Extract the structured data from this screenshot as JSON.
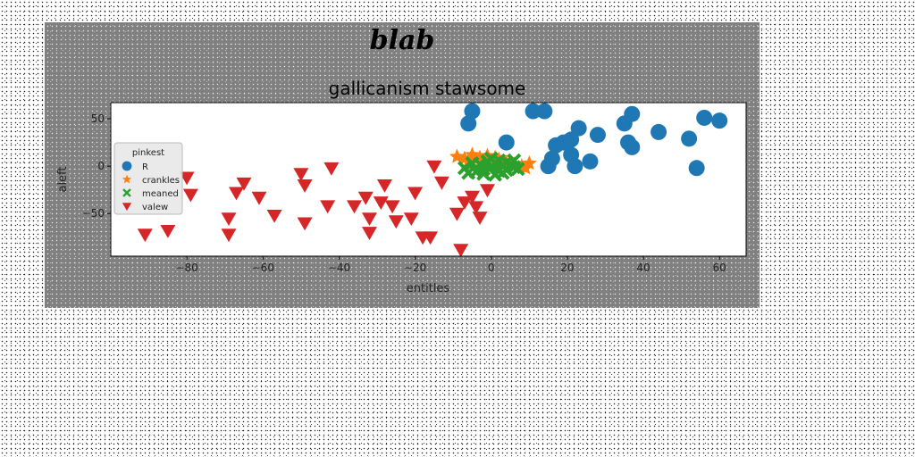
{
  "chart_data": {
    "type": "scatter",
    "suptitle": "blab",
    "title": "gallicanism stawsome",
    "xlabel": "entitles",
    "ylabel": "aleft",
    "xlim": [
      -100,
      67
    ],
    "ylim": [
      -95,
      67
    ],
    "xticks": [
      -80,
      -60,
      -40,
      -20,
      0,
      20,
      40,
      60
    ],
    "yticks": [
      50,
      0,
      -50
    ],
    "legend": {
      "title": "pinkest",
      "placement": "center-left"
    },
    "series": [
      {
        "name": "R",
        "marker": "circle",
        "color": "#1f77b4",
        "points": [
          [
            -5,
            58
          ],
          [
            -6,
            45
          ],
          [
            4,
            25
          ],
          [
            11,
            58
          ],
          [
            14,
            58
          ],
          [
            17,
            22
          ],
          [
            19,
            25
          ],
          [
            21,
            28
          ],
          [
            23,
            40
          ],
          [
            21,
            12
          ],
          [
            16,
            8
          ],
          [
            22,
            0
          ],
          [
            15,
            0
          ],
          [
            26,
            5
          ],
          [
            28,
            33
          ],
          [
            35,
            45
          ],
          [
            37,
            55
          ],
          [
            36,
            25
          ],
          [
            37,
            20
          ],
          [
            44,
            36
          ],
          [
            52,
            29
          ],
          [
            54,
            -2
          ],
          [
            56,
            51
          ],
          [
            60,
            48
          ]
        ]
      },
      {
        "name": "crankles",
        "marker": "star",
        "color": "#ff7f0e",
        "points": [
          [
            -9,
            10
          ],
          [
            -7,
            8
          ],
          [
            -5,
            12
          ],
          [
            -3,
            9
          ],
          [
            -1,
            11
          ],
          [
            2,
            7
          ],
          [
            4,
            4
          ],
          [
            6,
            2
          ],
          [
            8,
            0
          ],
          [
            9,
            -2
          ],
          [
            10,
            3
          ],
          [
            -6,
            6
          ],
          [
            -2,
            5
          ],
          [
            1,
            9
          ],
          [
            3,
            1
          ],
          [
            5,
            5
          ]
        ]
      },
      {
        "name": "meaned",
        "marker": "x",
        "color": "#2ca02c",
        "points": [
          [
            -7,
            -2
          ],
          [
            -5,
            3
          ],
          [
            -4,
            -6
          ],
          [
            -3,
            2
          ],
          [
            -2,
            -3
          ],
          [
            -1,
            5
          ],
          [
            0,
            -1
          ],
          [
            0,
            8
          ],
          [
            1,
            3
          ],
          [
            2,
            -5
          ],
          [
            2,
            6
          ],
          [
            3,
            0
          ],
          [
            4,
            -4
          ],
          [
            4,
            4
          ],
          [
            5,
            2
          ],
          [
            6,
            -1
          ],
          [
            6,
            6
          ],
          [
            7,
            -3
          ],
          [
            -6,
            -7
          ],
          [
            -2,
            -8
          ],
          [
            1,
            -9
          ],
          [
            3,
            -7
          ]
        ]
      },
      {
        "name": "valew",
        "marker": "triangle_down",
        "color": "#d62728",
        "points": [
          [
            -91,
            -72
          ],
          [
            -85,
            -68
          ],
          [
            -80,
            -12
          ],
          [
            -79,
            -30
          ],
          [
            -69,
            -55
          ],
          [
            -69,
            -72
          ],
          [
            -67,
            -28
          ],
          [
            -65,
            -18
          ],
          [
            -61,
            -33
          ],
          [
            -57,
            -52
          ],
          [
            -50,
            -8
          ],
          [
            -49,
            -20
          ],
          [
            -49,
            -60
          ],
          [
            -42,
            -2
          ],
          [
            -43,
            -42
          ],
          [
            -36,
            -42
          ],
          [
            -33,
            -33
          ],
          [
            -32,
            -55
          ],
          [
            -32,
            -70
          ],
          [
            -29,
            -38
          ],
          [
            -28,
            -20
          ],
          [
            -26,
            -42
          ],
          [
            -25,
            -58
          ],
          [
            -21,
            -55
          ],
          [
            -20,
            -28
          ],
          [
            -18,
            -75
          ],
          [
            -16,
            -75
          ],
          [
            -15,
            0
          ],
          [
            -13,
            -17
          ],
          [
            -9,
            -50
          ],
          [
            -8,
            -88
          ],
          [
            -7,
            -38
          ],
          [
            -5,
            -32
          ],
          [
            -4,
            -43
          ],
          [
            -3,
            -54
          ],
          [
            -1,
            -25
          ]
        ]
      }
    ]
  }
}
